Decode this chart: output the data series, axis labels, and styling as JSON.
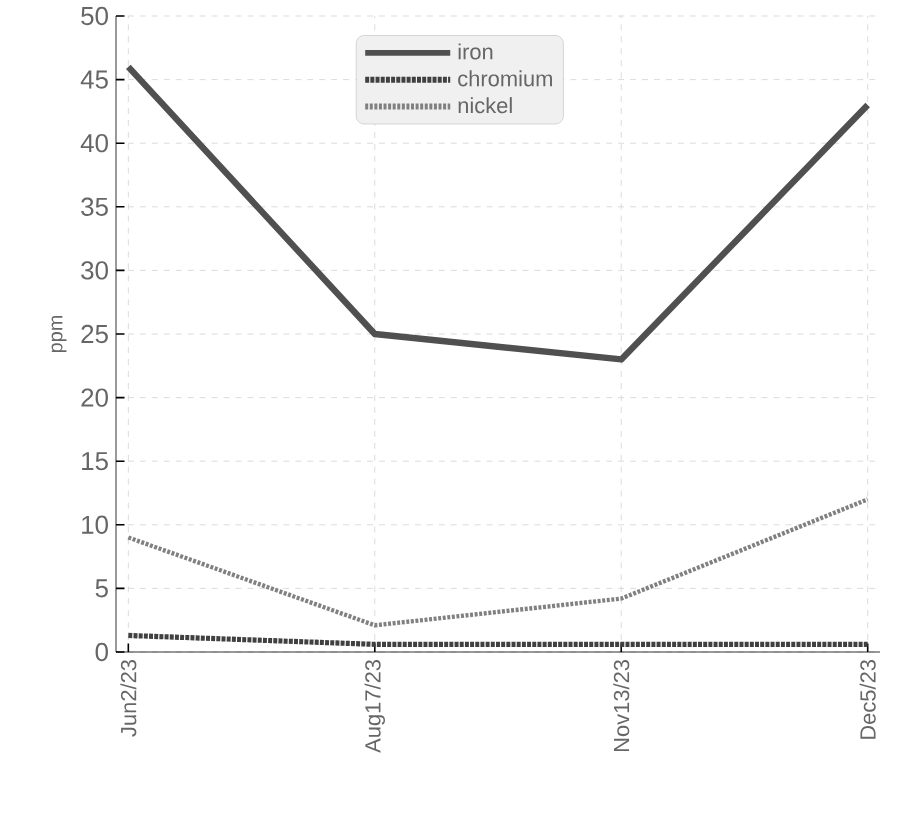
{
  "chart_data": {
    "type": "line",
    "ylabel": "ppm",
    "categories": [
      "Jun2/23",
      "Aug17/23",
      "Nov13/23",
      "Dec5/23"
    ],
    "series": [
      {
        "name": "iron",
        "color": "#505050",
        "line_style": "solid",
        "values": [
          46,
          25,
          23,
          43
        ]
      },
      {
        "name": "chromium",
        "color": "#404040",
        "line_style": "dashed",
        "values": [
          1.3,
          0.6,
          0.6,
          0.6
        ]
      },
      {
        "name": "nickel",
        "color": "#808080",
        "line_style": "dotted",
        "values": [
          9,
          2.1,
          4.2,
          12
        ]
      }
    ],
    "ylim": [
      0,
      50
    ],
    "yticks": [
      0,
      5,
      10,
      15,
      20,
      25,
      30,
      35,
      40,
      45,
      50
    ],
    "grid": true,
    "legend": "top"
  }
}
